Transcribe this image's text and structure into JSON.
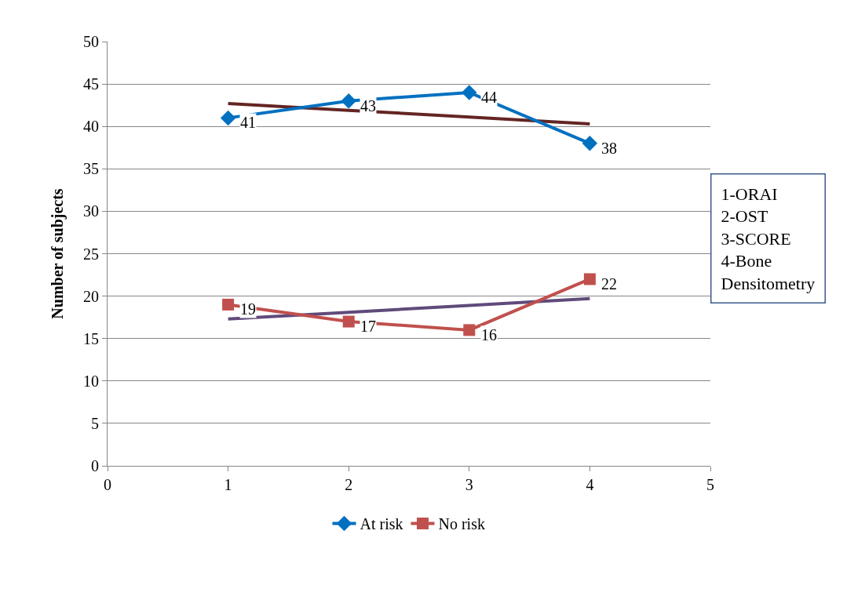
{
  "chart_data": {
    "type": "line",
    "ylabel": "Number of subjects",
    "x": [
      1,
      2,
      3,
      4
    ],
    "series": [
      {
        "name": "At risk",
        "color": "#0070c0",
        "values": [
          41,
          43,
          44,
          38
        ],
        "marker": "diamond",
        "value_labels": [
          "41",
          "43",
          "44",
          "38"
        ]
      },
      {
        "name": "No risk",
        "color": "#c0504d",
        "values": [
          19,
          17,
          16,
          22
        ],
        "marker": "square",
        "value_labels": [
          "19",
          "17",
          "16",
          "22"
        ]
      },
      {
        "color": "#632523",
        "values": [
          42.7,
          41.9,
          41.1,
          40.3
        ],
        "marker": "none"
      },
      {
        "color": "#604a7b",
        "values": [
          17.3,
          18.1,
          18.9,
          19.7
        ],
        "marker": "none"
      }
    ],
    "xlim": [
      0,
      5
    ],
    "xticks": [
      0,
      1,
      2,
      3,
      4,
      5
    ],
    "ylim": [
      0,
      50
    ],
    "yticks": [
      0,
      5,
      10,
      15,
      20,
      25,
      30,
      35,
      40,
      45,
      50
    ],
    "grid": "y",
    "legend": "bottom",
    "line_style": "solid",
    "annotations": [
      "1-ORAI\n2-OST\n3-SCORE\n4-Bone\nDensitometry"
    ]
  }
}
